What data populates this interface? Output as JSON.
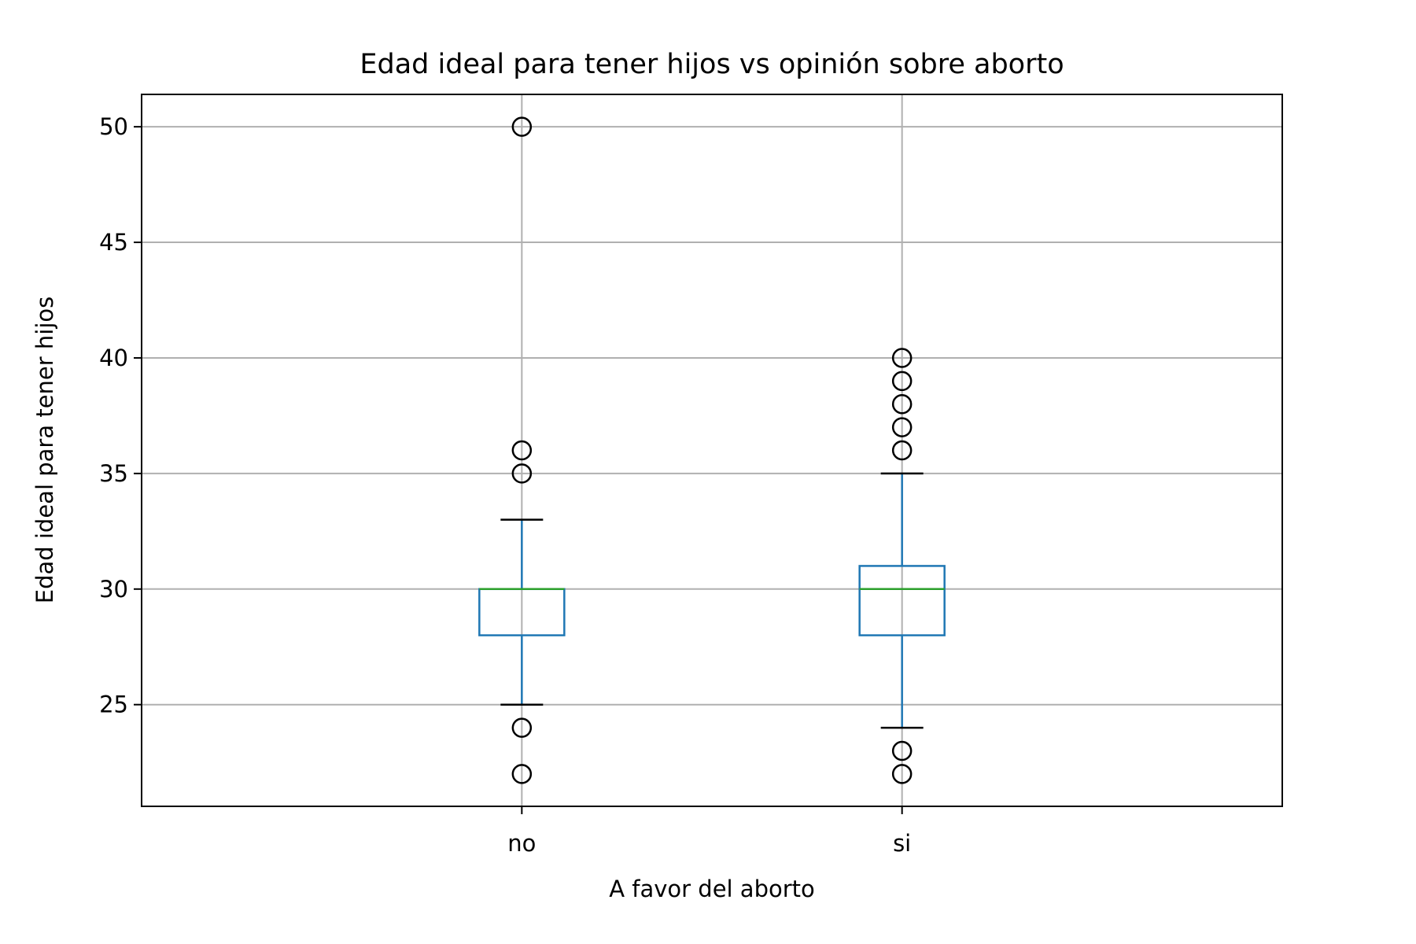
{
  "chart_data": {
    "type": "box",
    "title": "Edad ideal para tener hijos vs opinión sobre aborto",
    "xlabel": "A favor del aborto",
    "ylabel": "Edad ideal para tener hijos",
    "categories": [
      "no",
      "si"
    ],
    "ylim": [
      20.6,
      51.4
    ],
    "yticks": [
      "25",
      "30",
      "35",
      "40",
      "45",
      "50"
    ],
    "grid": true,
    "boxes": [
      {
        "category": "no",
        "whisker_low": 25,
        "q1": 28,
        "median": 30,
        "q3": 30,
        "whisker_high": 33,
        "outliers": [
          22,
          24,
          35,
          36,
          50
        ]
      },
      {
        "category": "si",
        "whisker_low": 24,
        "q1": 28,
        "median": 30,
        "q3": 31,
        "whisker_high": 35,
        "outliers": [
          22,
          23,
          36,
          37,
          38,
          39,
          40
        ]
      }
    ],
    "colors": {
      "box": "#1f77b4",
      "median": "#2ca02c",
      "grid": "#b0b0b0",
      "flier": "#000000"
    }
  }
}
